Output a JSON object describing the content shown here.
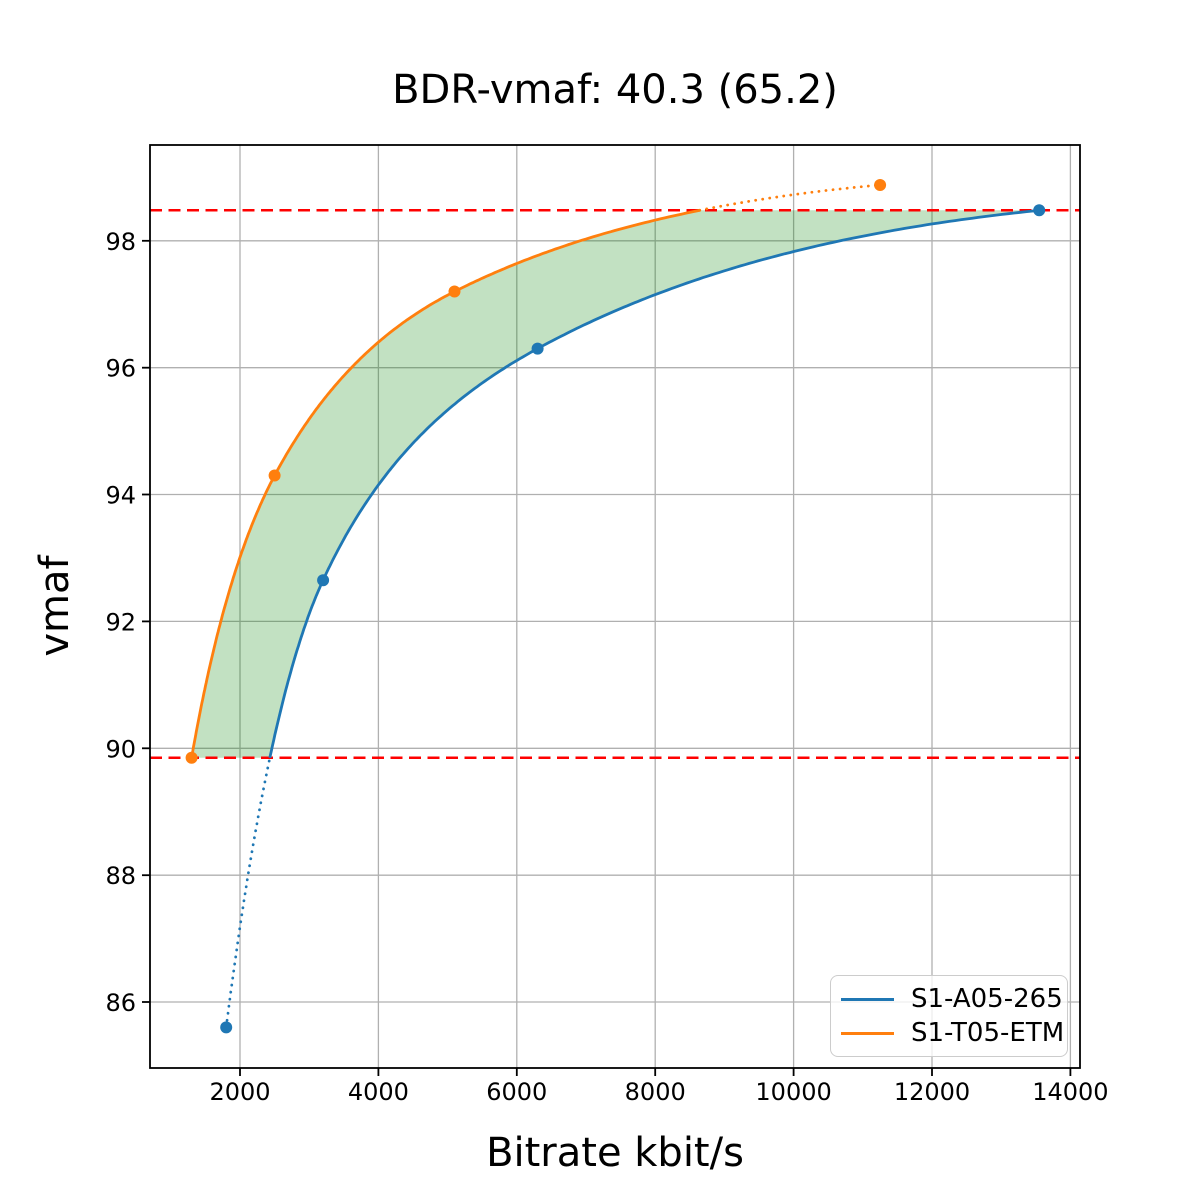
{
  "chart_data": {
    "type": "line",
    "title": "BDR-vmaf: 40.3 (65.2)",
    "xlabel": "Bitrate kbit/s",
    "ylabel": "vmaf",
    "xlim": [
      699,
      14139
    ],
    "ylim": [
      84.96,
      99.51
    ],
    "x_ticks": [
      2000,
      4000,
      6000,
      8000,
      10000,
      12000,
      14000
    ],
    "y_ticks": [
      86,
      88,
      90,
      92,
      94,
      96,
      98
    ],
    "grid": true,
    "grid_color": "#b0b0b0",
    "legend_position": "lower right",
    "curve": "log-pchip",
    "series": [
      {
        "name": "S1-A05-265",
        "color": "#1f77b4",
        "x": [
          1800,
          3200,
          6300,
          13550
        ],
        "y": [
          85.6,
          92.65,
          96.3,
          98.48
        ]
      },
      {
        "name": "S1-T05-ETM",
        "color": "#ff7f0e",
        "x": [
          1300,
          2500,
          5100,
          11250
        ],
        "y": [
          89.85,
          94.3,
          97.2,
          98.88
        ]
      }
    ],
    "overlap_band": {
      "y_low": 89.85,
      "y_high": 98.48,
      "line_color": "#ff0000",
      "line_style": "dashed",
      "fill_color": "#008000",
      "fill_opacity": 0.24
    }
  }
}
